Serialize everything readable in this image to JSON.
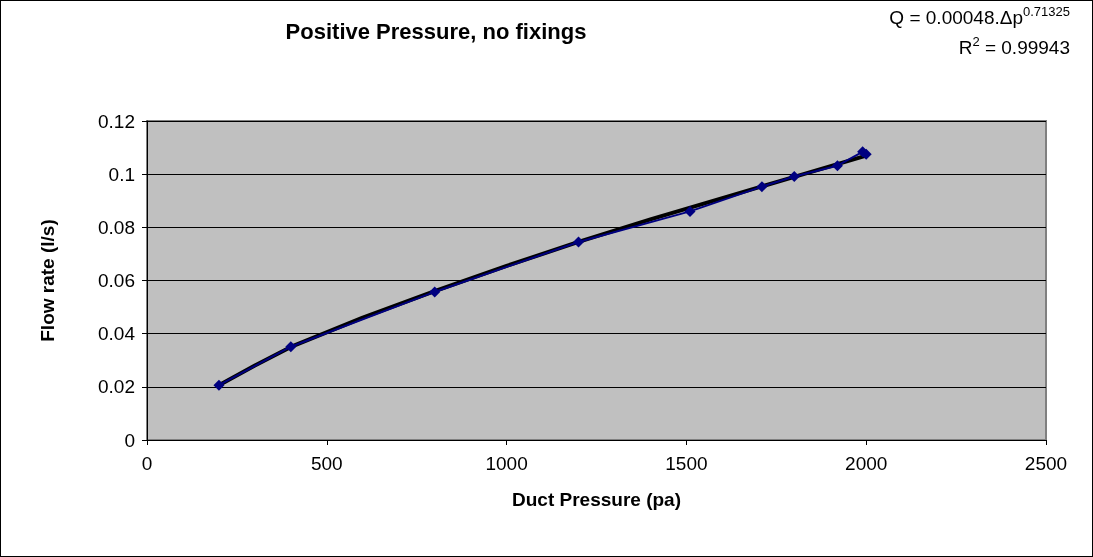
{
  "chart_data": {
    "type": "line",
    "title": "Positive Pressure, no fixings",
    "xlabel": "Duct Pressure (pa)",
    "ylabel": "Flow rate (l/s)",
    "annotations": [
      "Q = 0.00048.Δp$^{0.71325}$",
      "R$^{2}$ = 0.99943"
    ],
    "series": [
      {
        "color": "#000080",
        "marker": "diamond",
        "x": [
          200,
          400,
          800,
          1200,
          1510,
          1710,
          1800,
          1920,
          1990,
          2000
        ],
        "values": [
          0.0206,
          0.0351,
          0.0557,
          0.0745,
          0.086,
          0.0953,
          0.0991,
          0.1032,
          0.1084,
          0.1075
        ]
      },
      {
        "color": "#000000",
        "marker": "none",
        "x": [
          200,
          300,
          400,
          600,
          800,
          1000,
          1200,
          1400,
          1600,
          1800,
          2000
        ],
        "values": [
          0.0206,
          0.028,
          0.035,
          0.046,
          0.056,
          0.0655,
          0.0745,
          0.083,
          0.091,
          0.099,
          0.107
        ]
      }
    ],
    "xlim": [
      0,
      2500
    ],
    "xticks": [
      0,
      500,
      1000,
      1500,
      2000,
      2500
    ],
    "ylim": [
      0,
      0.12
    ],
    "yticks": [
      0,
      0.02,
      0.04,
      0.06,
      0.08,
      0.1,
      0.12
    ],
    "grid": "y",
    "legend": false
  }
}
